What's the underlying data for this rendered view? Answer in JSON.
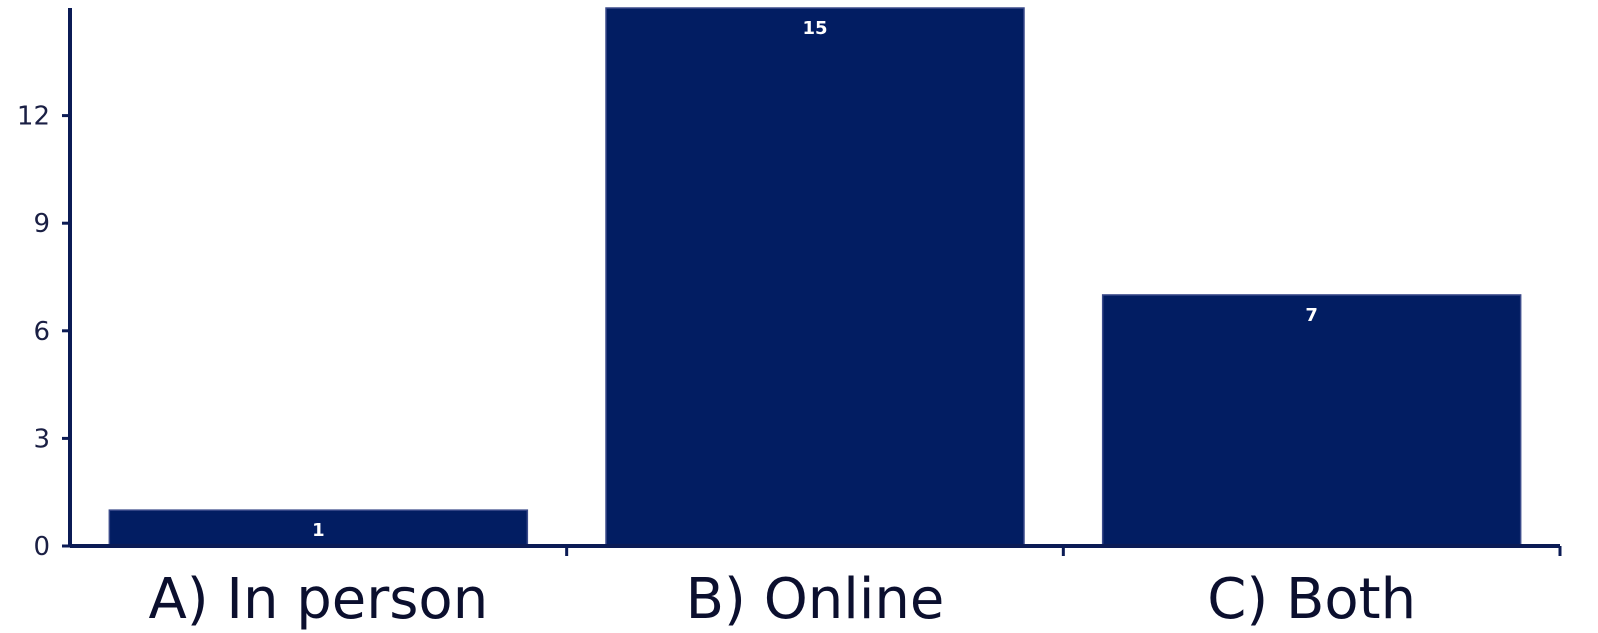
{
  "chart_data": {
    "type": "bar",
    "categories": [
      "A) In person",
      "B) Online",
      "C) Both"
    ],
    "values": [
      1,
      15,
      7
    ],
    "data_labels": [
      "1",
      "15",
      "7"
    ],
    "yticks": [
      0,
      3,
      6,
      9,
      12
    ],
    "ylim": [
      0,
      15
    ],
    "grid": false,
    "legend": "none",
    "title": "",
    "xlabel": "",
    "ylabel": "",
    "bar_color": "#021d62",
    "axis_color": "#0b1b55"
  }
}
